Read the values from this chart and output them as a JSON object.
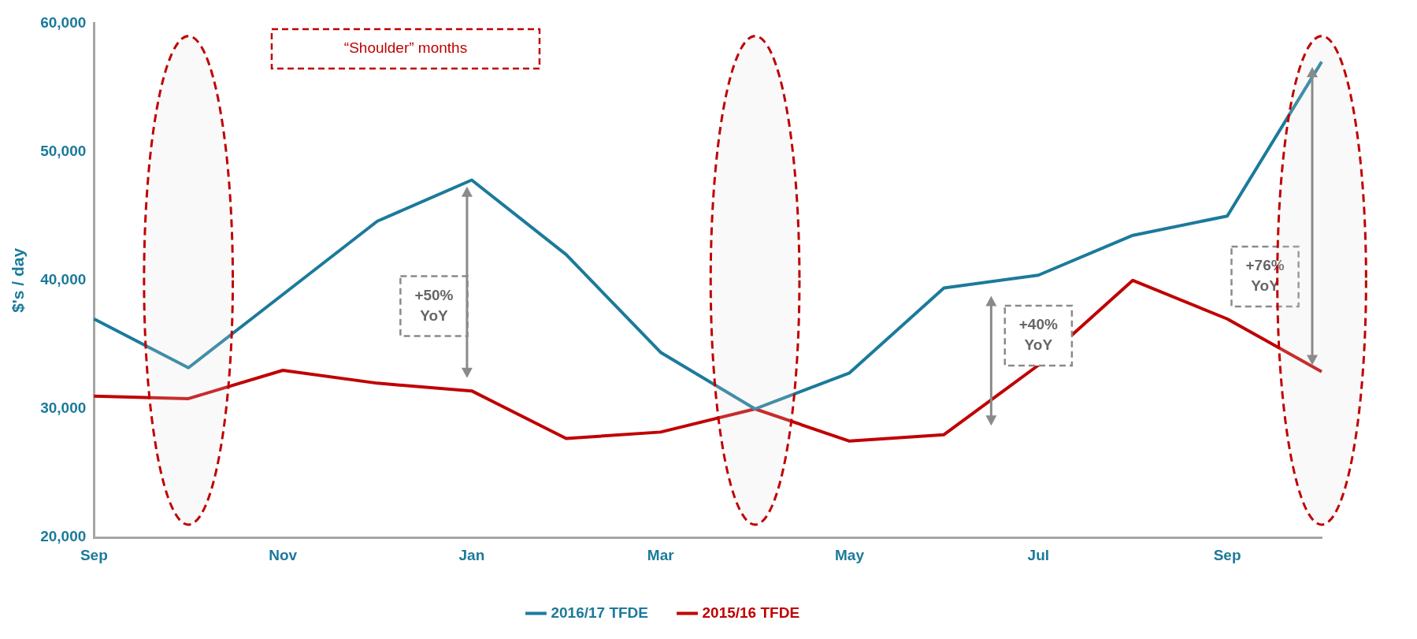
{
  "chart_data": {
    "type": "line",
    "ylabel": "$'s / day",
    "categories": [
      "Sep",
      null,
      "Nov",
      null,
      "Jan",
      null,
      "Mar",
      null,
      "May",
      null,
      "Jul",
      null,
      "Sep",
      null
    ],
    "series": [
      {
        "name": "2016/17 TFDE",
        "color": "#1b7a9b",
        "values": [
          37000,
          33200,
          38900,
          44600,
          47800,
          42000,
          34400,
          30000,
          32800,
          39400,
          40400,
          43500,
          45000,
          57000
        ]
      },
      {
        "name": "2015/16 TFDE",
        "color": "#c00000",
        "values": [
          31000,
          30800,
          33000,
          32000,
          31400,
          27700,
          28200,
          30000,
          27500,
          28000,
          33400,
          40000,
          37000,
          32900
        ]
      }
    ],
    "ylim": [
      20000,
      60000
    ],
    "yticks": [
      {
        "value": 20000,
        "label": "20,000"
      },
      {
        "value": 30000,
        "label": "30,000"
      },
      {
        "value": 40000,
        "label": "40,000"
      },
      {
        "value": 50000,
        "label": "50,000"
      },
      {
        "value": 60000,
        "label": "60,000"
      }
    ],
    "grid": false,
    "legend": "bottom",
    "marker": "none",
    "line_style": "solid",
    "annotations": [
      "“Shoulder” months",
      "+50% YoY",
      "+40% YoY",
      "+76% YoY"
    ]
  }
}
